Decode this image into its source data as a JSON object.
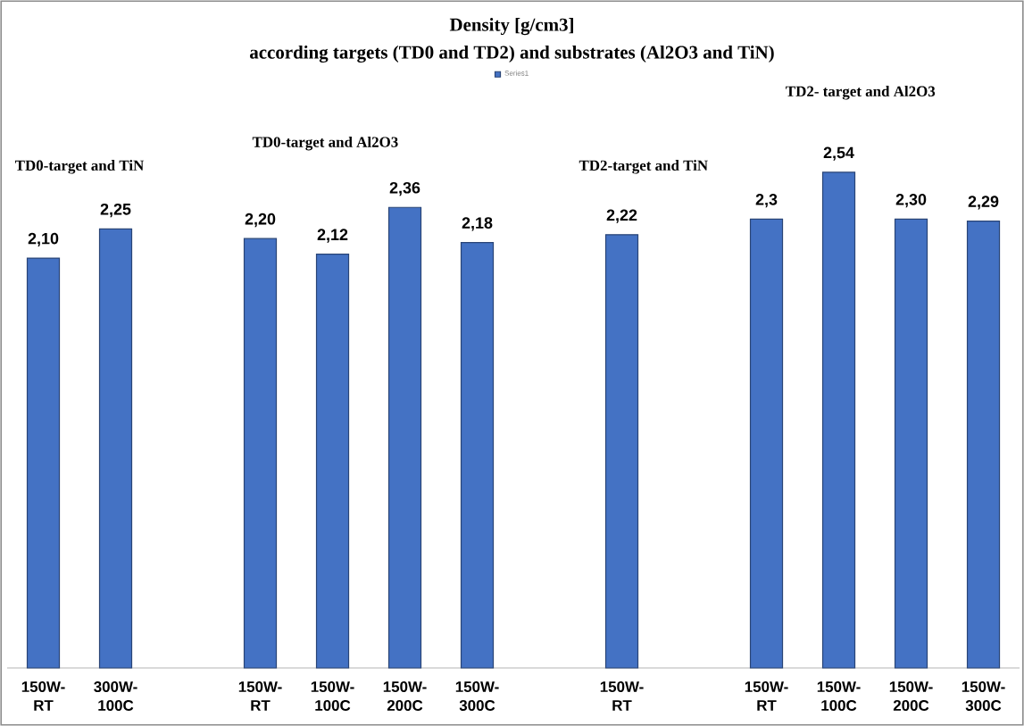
{
  "chart_data": {
    "type": "bar",
    "title": "Density [g/cm3]",
    "subtitle": "according targets (TD0 and TD2) and substrates (Al2O3 and TiN)",
    "categories": [
      "150W- RT",
      "300W- 100C",
      null,
      "150W- RT",
      "150W- 100C",
      "150W- 200C",
      "150W- 300C",
      null,
      "150W- RT",
      null,
      "150W- RT",
      "150W- 100C",
      "150W- 200C",
      "150W- 300C"
    ],
    "series": [
      {
        "name": "Series1",
        "color": "#4472c4",
        "values": [
          2.1,
          2.25,
          null,
          2.2,
          2.12,
          2.36,
          2.18,
          null,
          2.22,
          null,
          2.3,
          2.54,
          2.3,
          2.29
        ],
        "value_labels": [
          "2,10",
          "2,25",
          null,
          "2,20",
          "2,12",
          "2,36",
          "2,18",
          null,
          "2,22",
          null,
          "2,3",
          "2,54",
          "2,30",
          "2,29"
        ]
      }
    ],
    "annotations": [
      "TD0-target and TiN",
      "TD0-target  and Al2O3",
      "TD2-target and TiN",
      "TD2- target and Al2O3"
    ],
    "legend": "top",
    "tick_labels": "x"
  }
}
